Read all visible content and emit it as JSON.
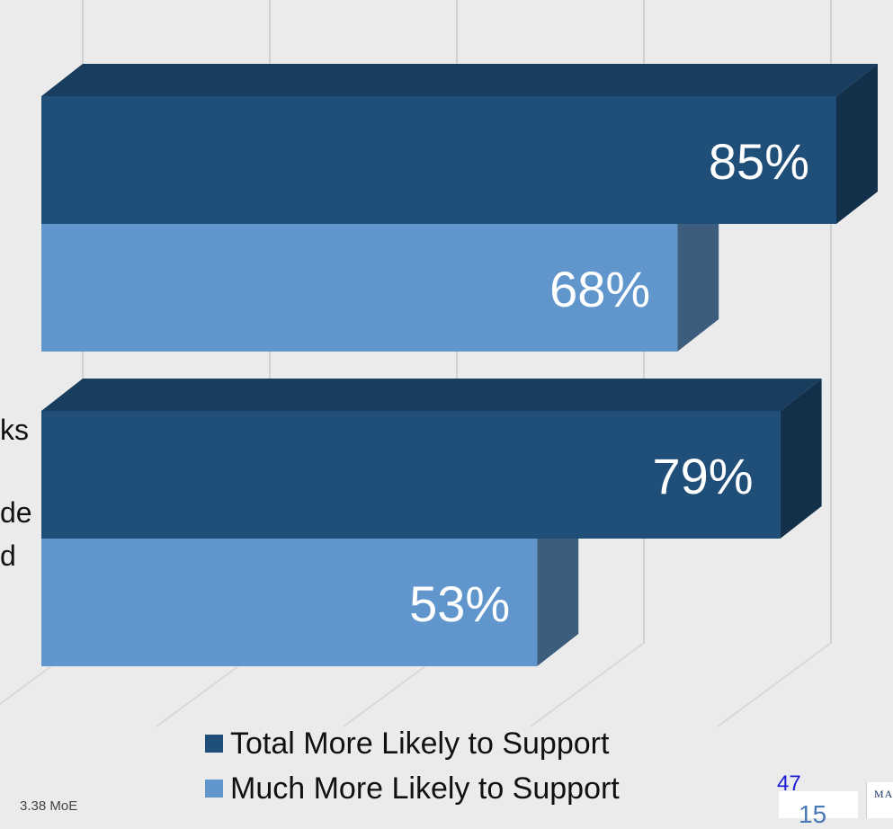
{
  "chart_data": {
    "type": "bar",
    "orientation": "horizontal",
    "categories": [
      "",
      ""
    ],
    "series": [
      {
        "name": "Total More Likely to Support",
        "values": [
          85,
          79
        ],
        "color": "#1f4e79"
      },
      {
        "name": "Much More Likely to Support",
        "values": [
          68,
          53
        ],
        "color": "#6096cc"
      }
    ],
    "value_labels": [
      [
        "85%",
        "79%"
      ],
      [
        "68%",
        "53%"
      ]
    ],
    "xlim": [
      0,
      100
    ],
    "grid": true,
    "legend_position": "bottom"
  },
  "left_label_fragments": [
    "ks",
    "de",
    "d"
  ],
  "legend": {
    "items": [
      {
        "label": "Total More Likely to Support",
        "color": "#1f4e79"
      },
      {
        "label": "Much More Likely to Support",
        "color": "#6096cc"
      }
    ]
  },
  "footnote": "3.38 MoE",
  "page_number": "47",
  "page_number_secondary": "15",
  "logo_text": "MA"
}
